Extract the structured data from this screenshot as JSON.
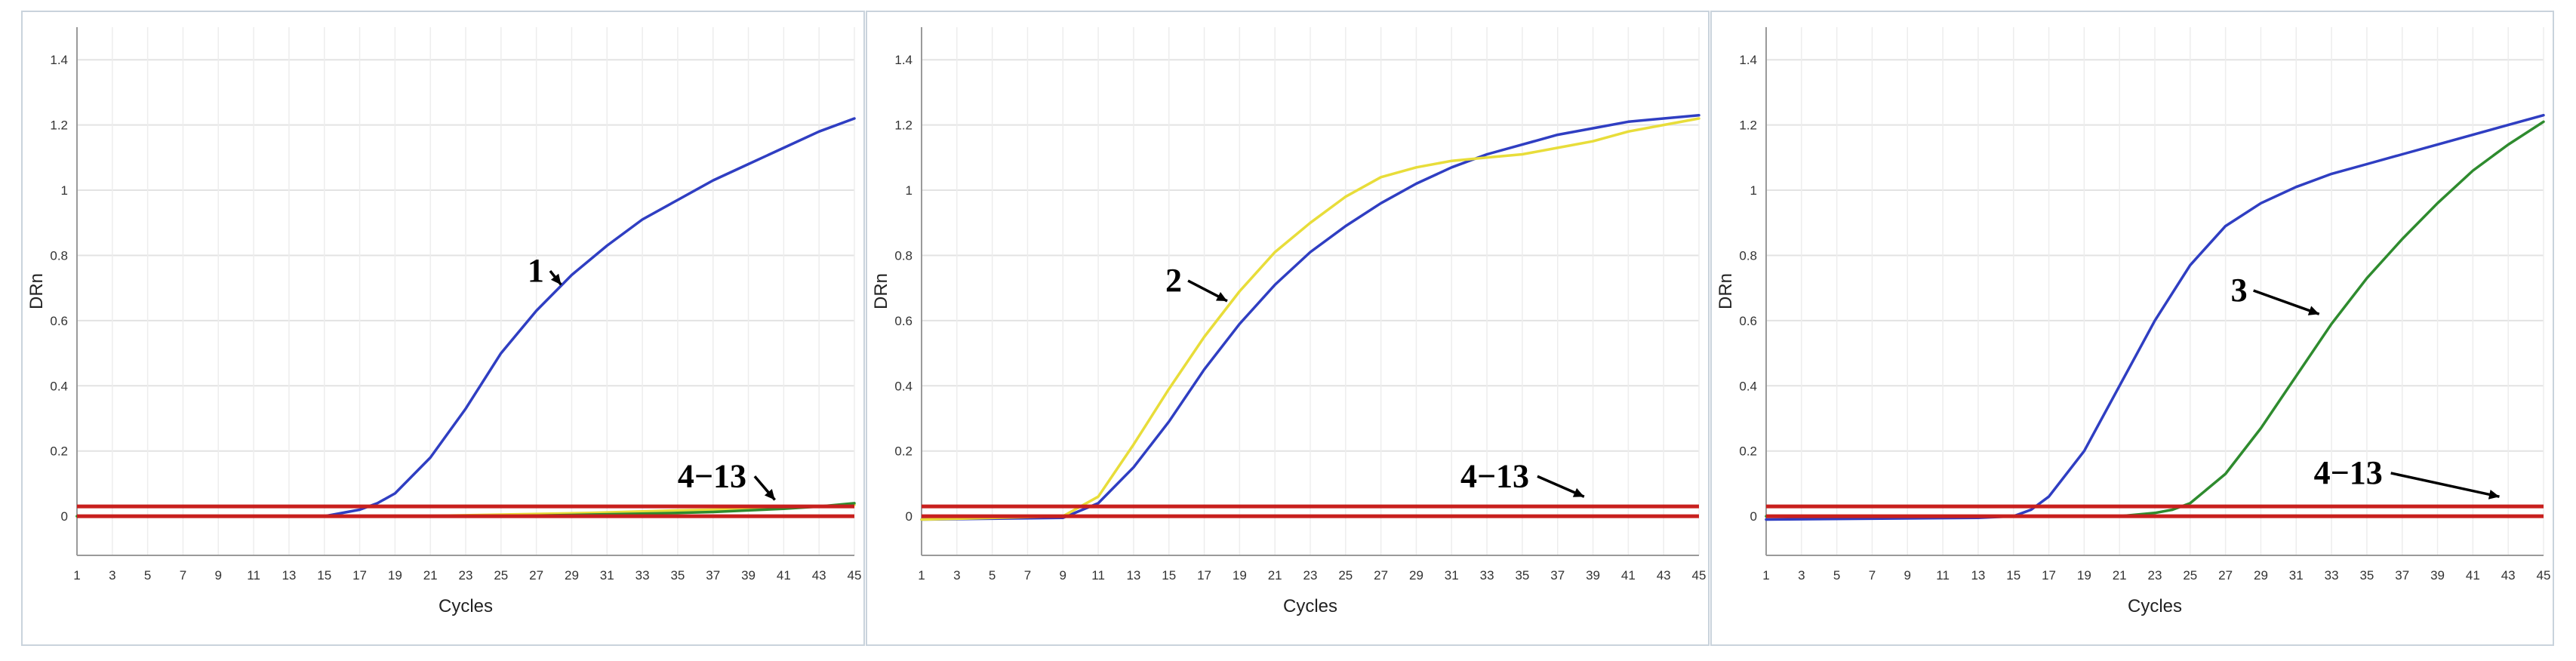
{
  "chart_data": [
    {
      "type": "line",
      "xlabel": "Cycles",
      "ylabel": "DRn",
      "xlim": [
        1,
        45
      ],
      "ylim": [
        -0.12,
        1.5
      ],
      "xticks": [
        1,
        3,
        5,
        7,
        9,
        11,
        13,
        15,
        17,
        19,
        21,
        23,
        25,
        27,
        29,
        31,
        33,
        35,
        37,
        39,
        41,
        43,
        45
      ],
      "yticks": [
        "0",
        "0.2",
        "0.4",
        "0.6",
        "0.8",
        "1",
        "1.2",
        "1.4"
      ],
      "grid": true,
      "thresholds": [
        0.03,
        0.0
      ],
      "series": [
        {
          "color": "#2f3ec2",
          "x": [
            1,
            15,
            17,
            18,
            19,
            21,
            23,
            25,
            27,
            29,
            31,
            33,
            35,
            37,
            39,
            41,
            43,
            45
          ],
          "y": [
            0.0,
            0.0,
            0.02,
            0.04,
            0.07,
            0.18,
            0.33,
            0.5,
            0.63,
            0.74,
            0.83,
            0.91,
            0.97,
            1.03,
            1.08,
            1.13,
            1.18,
            1.22
          ]
        },
        {
          "color": "#e8dd3a",
          "x": [
            1,
            20,
            25,
            30,
            33,
            35,
            37,
            39,
            41,
            43,
            45
          ],
          "y": [
            0.0,
            0.0,
            0.005,
            0.01,
            0.015,
            0.018,
            0.02,
            0.022,
            0.025,
            0.03,
            0.035
          ]
        },
        {
          "color": "#2e8b2e",
          "x": [
            1,
            25,
            30,
            35,
            37,
            39,
            41,
            43,
            45
          ],
          "y": [
            0.0,
            0.0,
            0.005,
            0.01,
            0.013,
            0.018,
            0.023,
            0.03,
            0.04
          ]
        }
      ],
      "annotations": [
        {
          "text": "1",
          "x": 26.5,
          "y": 0.72,
          "ax": 28.4,
          "ay": 0.71
        },
        {
          "text": "4−13",
          "x": 35.0,
          "y": 0.09,
          "ax": 40.5,
          "ay": 0.05
        }
      ]
    },
    {
      "type": "line",
      "xlabel": "Cycles",
      "ylabel": "DRn",
      "xlim": [
        1,
        45
      ],
      "ylim": [
        -0.12,
        1.5
      ],
      "xticks": [
        1,
        3,
        5,
        7,
        9,
        11,
        13,
        15,
        17,
        19,
        21,
        23,
        25,
        27,
        29,
        31,
        33,
        35,
        37,
        39,
        41,
        43,
        45
      ],
      "yticks": [
        "0",
        "0.2",
        "0.4",
        "0.6",
        "0.8",
        "1",
        "1.2",
        "1.4"
      ],
      "grid": true,
      "thresholds": [
        0.03,
        0.0
      ],
      "series": [
        {
          "color": "#2f3ec2",
          "x": [
            1,
            9,
            11,
            13,
            15,
            17,
            19,
            21,
            23,
            25,
            27,
            29,
            31,
            33,
            35,
            37,
            39,
            41,
            43,
            45
          ],
          "y": [
            -0.01,
            -0.005,
            0.04,
            0.15,
            0.29,
            0.45,
            0.59,
            0.71,
            0.81,
            0.89,
            0.96,
            1.02,
            1.07,
            1.11,
            1.14,
            1.17,
            1.19,
            1.21,
            1.22,
            1.23
          ]
        },
        {
          "color": "#e8dd3a",
          "x": [
            1,
            9,
            11,
            13,
            15,
            17,
            19,
            21,
            23,
            25,
            27,
            29,
            31,
            33,
            35,
            37,
            39,
            41,
            43,
            45
          ],
          "y": [
            -0.01,
            0.0,
            0.06,
            0.22,
            0.39,
            0.55,
            0.69,
            0.81,
            0.9,
            0.98,
            1.04,
            1.07,
            1.09,
            1.1,
            1.11,
            1.13,
            1.15,
            1.18,
            1.2,
            1.22
          ]
        }
      ],
      "annotations": [
        {
          "text": "2",
          "x": 14.8,
          "y": 0.69,
          "ax": 18.3,
          "ay": 0.66
        },
        {
          "text": "4−13",
          "x": 31.5,
          "y": 0.09,
          "ax": 38.5,
          "ay": 0.06
        }
      ]
    },
    {
      "type": "line",
      "xlabel": "Cycles",
      "ylabel": "DRn",
      "xlim": [
        1,
        45
      ],
      "ylim": [
        -0.12,
        1.5
      ],
      "xticks": [
        1,
        3,
        5,
        7,
        9,
        11,
        13,
        15,
        17,
        19,
        21,
        23,
        25,
        27,
        29,
        31,
        33,
        35,
        37,
        39,
        41,
        43,
        45
      ],
      "yticks": [
        "0",
        "0.2",
        "0.4",
        "0.6",
        "0.8",
        "1",
        "1.2",
        "1.4"
      ],
      "grid": true,
      "thresholds": [
        0.03,
        0.0
      ],
      "series": [
        {
          "color": "#2f3ec2",
          "x": [
            1,
            13,
            15,
            16,
            17,
            19,
            21,
            23,
            25,
            27,
            29,
            31,
            33,
            35,
            37,
            39,
            41,
            43,
            45
          ],
          "y": [
            -0.01,
            -0.005,
            0.0,
            0.02,
            0.06,
            0.2,
            0.4,
            0.6,
            0.77,
            0.89,
            0.96,
            1.01,
            1.05,
            1.08,
            1.11,
            1.14,
            1.17,
            1.2,
            1.23
          ]
        },
        {
          "color": "#2e8b2e",
          "x": [
            1,
            21,
            23,
            24,
            25,
            27,
            29,
            31,
            33,
            35,
            37,
            39,
            41,
            43,
            45
          ],
          "y": [
            0.0,
            0.0,
            0.01,
            0.02,
            0.04,
            0.13,
            0.27,
            0.43,
            0.59,
            0.73,
            0.85,
            0.96,
            1.06,
            1.14,
            1.21
          ]
        }
      ],
      "annotations": [
        {
          "text": "3",
          "x": 27.3,
          "y": 0.66,
          "ax": 32.3,
          "ay": 0.62
        },
        {
          "text": "4−13",
          "x": 32.0,
          "y": 0.1,
          "ax": 42.5,
          "ay": 0.06
        }
      ]
    }
  ]
}
